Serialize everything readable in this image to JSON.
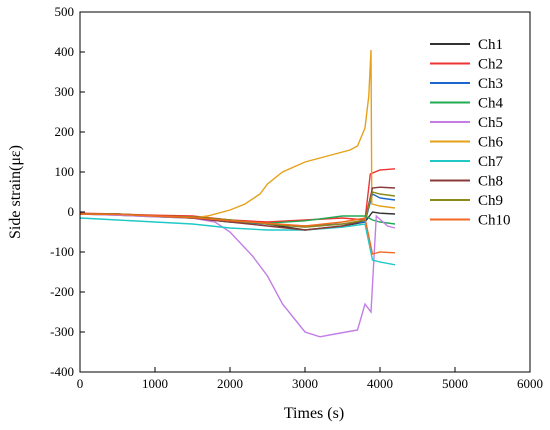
{
  "chart_data": {
    "type": "line",
    "title": "",
    "xlabel": "Times (s)",
    "ylabel": "Side strain(με)",
    "xlim": [
      0,
      6000
    ],
    "ylim": [
      -400,
      500
    ],
    "x_ticks": [
      "0",
      "1000",
      "2000",
      "3000",
      "4000",
      "5000",
      "6000"
    ],
    "y_ticks": [
      "500",
      "400",
      "300",
      "200",
      "100",
      "0",
      "-100",
      "-200",
      "-300",
      "-400"
    ],
    "grid": false,
    "legend_position": "right",
    "series": [
      {
        "name": "Ch1",
        "color": "#333333",
        "points": [
          [
            0,
            -5
          ],
          [
            500,
            -5
          ],
          [
            1000,
            -10
          ],
          [
            1500,
            -12
          ],
          [
            2000,
            -20
          ],
          [
            2500,
            -30
          ],
          [
            3000,
            -45
          ],
          [
            3500,
            -35
          ],
          [
            3800,
            -25
          ],
          [
            3900,
            0
          ],
          [
            4000,
            -3
          ],
          [
            4200,
            -5
          ]
        ]
      },
      {
        "name": "Ch2",
        "color": "#ee3333",
        "points": [
          [
            0,
            -3
          ],
          [
            500,
            -5
          ],
          [
            1000,
            -8
          ],
          [
            1500,
            -10
          ],
          [
            2000,
            -20
          ],
          [
            2500,
            -25
          ],
          [
            3000,
            -20
          ],
          [
            3500,
            -15
          ],
          [
            3800,
            -20
          ],
          [
            3870,
            95
          ],
          [
            4000,
            105
          ],
          [
            4200,
            108
          ]
        ]
      },
      {
        "name": "Ch3",
        "color": "#1a66cc",
        "points": [
          [
            0,
            -5
          ],
          [
            500,
            -6
          ],
          [
            1000,
            -10
          ],
          [
            1500,
            -15
          ],
          [
            2000,
            -25
          ],
          [
            2500,
            -30
          ],
          [
            3000,
            -35
          ],
          [
            3500,
            -30
          ],
          [
            3800,
            -25
          ],
          [
            3900,
            45
          ],
          [
            4000,
            35
          ],
          [
            4200,
            30
          ]
        ]
      },
      {
        "name": "Ch4",
        "color": "#22aa55",
        "points": [
          [
            0,
            -5
          ],
          [
            500,
            -8
          ],
          [
            1000,
            -12
          ],
          [
            1500,
            -15
          ],
          [
            2000,
            -25
          ],
          [
            2500,
            -28
          ],
          [
            3000,
            -22
          ],
          [
            3500,
            -10
          ],
          [
            3800,
            -10
          ],
          [
            3900,
            -20
          ],
          [
            4000,
            -25
          ],
          [
            4200,
            -30
          ]
        ]
      },
      {
        "name": "Ch5",
        "color": "#c27ee6",
        "points": [
          [
            0,
            -5
          ],
          [
            500,
            -8
          ],
          [
            1000,
            -12
          ],
          [
            1500,
            -15
          ],
          [
            1800,
            -25
          ],
          [
            2000,
            -50
          ],
          [
            2300,
            -110
          ],
          [
            2500,
            -160
          ],
          [
            2700,
            -230
          ],
          [
            3000,
            -300
          ],
          [
            3200,
            -312
          ],
          [
            3400,
            -305
          ],
          [
            3700,
            -295
          ],
          [
            3800,
            -230
          ],
          [
            3880,
            -250
          ],
          [
            3950,
            -10
          ],
          [
            4100,
            -35
          ],
          [
            4200,
            -40
          ]
        ]
      },
      {
        "name": "Ch6",
        "color": "#e6a118",
        "points": [
          [
            0,
            -5
          ],
          [
            500,
            -5
          ],
          [
            1000,
            -10
          ],
          [
            1500,
            -15
          ],
          [
            1700,
            -10
          ],
          [
            2000,
            5
          ],
          [
            2200,
            20
          ],
          [
            2400,
            45
          ],
          [
            2500,
            70
          ],
          [
            2700,
            100
          ],
          [
            3000,
            125
          ],
          [
            3300,
            140
          ],
          [
            3600,
            155
          ],
          [
            3700,
            165
          ],
          [
            3800,
            210
          ],
          [
            3850,
            290
          ],
          [
            3880,
            405
          ],
          [
            3890,
            20
          ],
          [
            4000,
            15
          ],
          [
            4200,
            10
          ]
        ]
      },
      {
        "name": "Ch7",
        "color": "#20c8c8",
        "points": [
          [
            0,
            -15
          ],
          [
            500,
            -20
          ],
          [
            1000,
            -25
          ],
          [
            1500,
            -30
          ],
          [
            2000,
            -40
          ],
          [
            2500,
            -45
          ],
          [
            3000,
            -45
          ],
          [
            3500,
            -38
          ],
          [
            3800,
            -30
          ],
          [
            3900,
            -120
          ],
          [
            4000,
            -125
          ],
          [
            4200,
            -132
          ]
        ]
      },
      {
        "name": "Ch8",
        "color": "#8a3a3a",
        "points": [
          [
            0,
            -5
          ],
          [
            500,
            -5
          ],
          [
            1000,
            -10
          ],
          [
            1500,
            -15
          ],
          [
            2000,
            -25
          ],
          [
            2500,
            -35
          ],
          [
            3000,
            -45
          ],
          [
            3500,
            -35
          ],
          [
            3800,
            -20
          ],
          [
            3900,
            60
          ],
          [
            4000,
            62
          ],
          [
            4200,
            60
          ]
        ]
      },
      {
        "name": "Ch9",
        "color": "#8a8a1a",
        "points": [
          [
            0,
            -5
          ],
          [
            500,
            -5
          ],
          [
            1000,
            -10
          ],
          [
            1500,
            -12
          ],
          [
            2000,
            -20
          ],
          [
            2500,
            -30
          ],
          [
            3000,
            -38
          ],
          [
            3500,
            -30
          ],
          [
            3800,
            -20
          ],
          [
            3900,
            50
          ],
          [
            4000,
            45
          ],
          [
            4200,
            40
          ]
        ]
      },
      {
        "name": "Ch10",
        "color": "#f26a22",
        "points": [
          [
            0,
            -5
          ],
          [
            500,
            -6
          ],
          [
            1000,
            -10
          ],
          [
            1500,
            -14
          ],
          [
            2000,
            -22
          ],
          [
            2500,
            -28
          ],
          [
            3000,
            -35
          ],
          [
            3500,
            -25
          ],
          [
            3800,
            -15
          ],
          [
            3900,
            -105
          ],
          [
            4000,
            -100
          ],
          [
            4200,
            -102
          ]
        ]
      }
    ]
  }
}
